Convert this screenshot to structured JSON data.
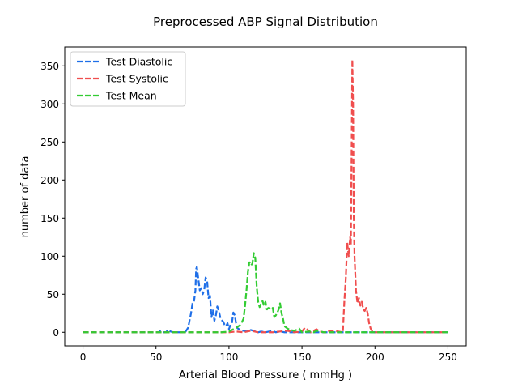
{
  "chart_data": {
    "type": "line",
    "title": "Preprocessed ABP Signal Distribution",
    "xlabel": "Arterial Blood Pressure ( mmHg )",
    "ylabel": "number of data",
    "xlim": [
      -12.5,
      262.5
    ],
    "ylim": [
      -17.8,
      374.8
    ],
    "xticks": [
      0,
      50,
      100,
      150,
      200,
      250
    ],
    "yticks": [
      0,
      50,
      100,
      150,
      200,
      250,
      300,
      350
    ],
    "grid": false,
    "legend_position": "top-left",
    "series": [
      {
        "name": "Test Diastolic",
        "color": "#1f6fe8",
        "points": [
          [
            0,
            0
          ],
          [
            52,
            0
          ],
          [
            53,
            2
          ],
          [
            55,
            0
          ],
          [
            57,
            0
          ],
          [
            58,
            3
          ],
          [
            60,
            1
          ],
          [
            62,
            0
          ],
          [
            70,
            0
          ],
          [
            72,
            6
          ],
          [
            74,
            25
          ],
          [
            75,
            38
          ],
          [
            76,
            40
          ],
          [
            77,
            55
          ],
          [
            77.5,
            83
          ],
          [
            78,
            86
          ],
          [
            79,
            70
          ],
          [
            80,
            55
          ],
          [
            81,
            58
          ],
          [
            82,
            50
          ],
          [
            83,
            55
          ],
          [
            84,
            72
          ],
          [
            85,
            68
          ],
          [
            86,
            45
          ],
          [
            87,
            48
          ],
          [
            88,
            20
          ],
          [
            89,
            30
          ],
          [
            90,
            15
          ],
          [
            91,
            22
          ],
          [
            92,
            34
          ],
          [
            93,
            28
          ],
          [
            94,
            20
          ],
          [
            95,
            16
          ],
          [
            96,
            14
          ],
          [
            97,
            10
          ],
          [
            98,
            8
          ],
          [
            99,
            12
          ],
          [
            100,
            4
          ],
          [
            101,
            10
          ],
          [
            102,
            12
          ],
          [
            103,
            26
          ],
          [
            104,
            22
          ],
          [
            105,
            10
          ],
          [
            106,
            5
          ],
          [
            108,
            3
          ],
          [
            110,
            2
          ],
          [
            112,
            1
          ],
          [
            115,
            3
          ],
          [
            118,
            1
          ],
          [
            120,
            0
          ],
          [
            122,
            1
          ],
          [
            125,
            0
          ],
          [
            130,
            2
          ],
          [
            132,
            0
          ],
          [
            135,
            1
          ],
          [
            138,
            0
          ],
          [
            140,
            0
          ],
          [
            250,
            0
          ]
        ]
      },
      {
        "name": "Test Systolic",
        "color": "#f04e4e",
        "points": [
          [
            0,
            0
          ],
          [
            100,
            0
          ],
          [
            105,
            1
          ],
          [
            110,
            0
          ],
          [
            115,
            2
          ],
          [
            120,
            0
          ],
          [
            130,
            0
          ],
          [
            135,
            1
          ],
          [
            140,
            2
          ],
          [
            145,
            0
          ],
          [
            150,
            1
          ],
          [
            152,
            6
          ],
          [
            154,
            3
          ],
          [
            156,
            0
          ],
          [
            158,
            2
          ],
          [
            160,
            4
          ],
          [
            162,
            1
          ],
          [
            165,
            0
          ],
          [
            170,
            2
          ],
          [
            175,
            1
          ],
          [
            178,
            0
          ],
          [
            179,
            40
          ],
          [
            180,
            70
          ],
          [
            181,
            118
          ],
          [
            182,
            100
          ],
          [
            183,
            125
          ],
          [
            183.5,
            115
          ],
          [
            184,
            230
          ],
          [
            184.5,
            358
          ],
          [
            185,
            300
          ],
          [
            185.5,
            150
          ],
          [
            186,
            100
          ],
          [
            187,
            55
          ],
          [
            188,
            38
          ],
          [
            189,
            45
          ],
          [
            190,
            35
          ],
          [
            191,
            40
          ],
          [
            192,
            30
          ],
          [
            193,
            28
          ],
          [
            194,
            32
          ],
          [
            195,
            25
          ],
          [
            196,
            12
          ],
          [
            197,
            5
          ],
          [
            198,
            2
          ],
          [
            200,
            0
          ],
          [
            250,
            0
          ]
        ]
      },
      {
        "name": "Test Mean",
        "color": "#33cc33",
        "points": [
          [
            0,
            0
          ],
          [
            95,
            0
          ],
          [
            100,
            1
          ],
          [
            105,
            6
          ],
          [
            108,
            10
          ],
          [
            110,
            18
          ],
          [
            111,
            35
          ],
          [
            112,
            55
          ],
          [
            113,
            80
          ],
          [
            114,
            92
          ],
          [
            115,
            88
          ],
          [
            116,
            90
          ],
          [
            117,
            104
          ],
          [
            118,
            98
          ],
          [
            119,
            60
          ],
          [
            120,
            40
          ],
          [
            121,
            33
          ],
          [
            122,
            38
          ],
          [
            123,
            41
          ],
          [
            124,
            35
          ],
          [
            125,
            40
          ],
          [
            126,
            30
          ],
          [
            127,
            32
          ],
          [
            128,
            31
          ],
          [
            129,
            30
          ],
          [
            130,
            32
          ],
          [
            131,
            20
          ],
          [
            132,
            22
          ],
          [
            133,
            25
          ],
          [
            134,
            30
          ],
          [
            135,
            38
          ],
          [
            136,
            25
          ],
          [
            137,
            18
          ],
          [
            138,
            8
          ],
          [
            140,
            5
          ],
          [
            142,
            3
          ],
          [
            145,
            2
          ],
          [
            148,
            5
          ],
          [
            150,
            0
          ],
          [
            155,
            1
          ],
          [
            158,
            0
          ],
          [
            160,
            2
          ],
          [
            165,
            0
          ],
          [
            250,
            0
          ]
        ]
      }
    ]
  }
}
